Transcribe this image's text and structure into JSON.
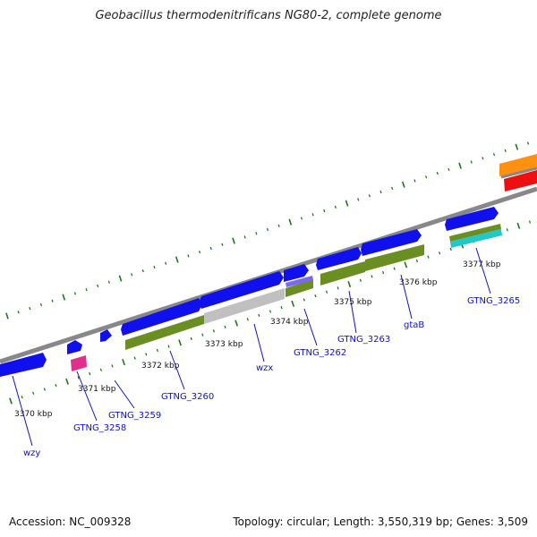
{
  "header": {
    "title": "Geobacillus thermodenitrificans NG80-2, complete genome"
  },
  "footer": {
    "accession": "Accession: NC_009328",
    "topology": "Topology: circular; Length: 3,550,319 bp; Genes: 3,509"
  },
  "colors": {
    "backbone": "#888888",
    "tick": "#1a7a1a",
    "gene_forward": "#1010ee",
    "cds_strip": "#6b8e23",
    "grey_gene": "#c0c0c0",
    "pink_gene": "#e0308a",
    "cyan_gene": "#20c8c8",
    "orange_gene": "#ff9010",
    "red_gene": "#ee1010",
    "label_text": "#1010cc"
  },
  "ticks": [
    "3370 kbp",
    "3371 kbp",
    "3372 kbp",
    "3373 kbp",
    "3374 kbp",
    "3375 kbp",
    "3376 kbp",
    "3377 kbp"
  ],
  "genes": [
    "wzy",
    "GTNG_3258",
    "GTNG_3259",
    "GTNG_3260",
    "wzx",
    "GTNG_3262",
    "GTNG_3263",
    "gtaB",
    "GTNG_3265"
  ]
}
